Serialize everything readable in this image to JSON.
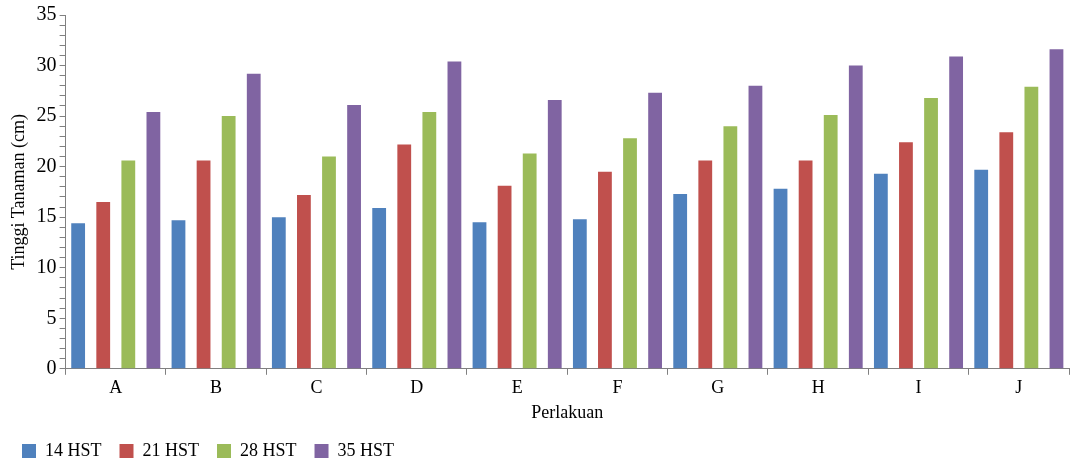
{
  "chart_data": {
    "type": "bar",
    "xlabel": "Perlakuan",
    "ylabel": "Tinggi Tanaman (cm)",
    "categories": [
      "A",
      "B",
      "C",
      "D",
      "E",
      "F",
      "G",
      "H",
      "I",
      "J"
    ],
    "series": [
      {
        "name": "14 HST",
        "color": "#4f81bd",
        "values": [
          14.4,
          14.7,
          15.0,
          15.9,
          14.5,
          14.8,
          17.3,
          17.8,
          19.3,
          19.7
        ]
      },
      {
        "name": "21 HST",
        "color": "#c0504d",
        "values": [
          16.5,
          20.6,
          17.2,
          22.2,
          18.1,
          19.5,
          20.6,
          20.6,
          22.4,
          23.4
        ]
      },
      {
        "name": "28 HST",
        "color": "#9bbb59",
        "values": [
          20.6,
          25.0,
          21.0,
          25.4,
          21.3,
          22.8,
          24.0,
          25.1,
          26.8,
          27.9
        ]
      },
      {
        "name": "35 HST",
        "color": "#8064a2",
        "values": [
          25.4,
          29.2,
          26.1,
          30.4,
          26.6,
          27.3,
          28.0,
          30.0,
          30.9,
          31.6
        ]
      }
    ],
    "ylim": [
      0,
      35
    ],
    "yticks": [
      0,
      {
        "value": 1,
        "label": null
      },
      {
        "value": 2,
        "label": null
      },
      {
        "value": 3,
        "label": null
      },
      {
        "value": 4,
        "label": null
      },
      5,
      {
        "value": 6,
        "label": null
      },
      {
        "value": 7,
        "label": null
      },
      {
        "value": 8,
        "label": null
      },
      {
        "value": 9,
        "label": null
      },
      10,
      {
        "value": 11,
        "label": null
      },
      {
        "value": 12,
        "label": null
      },
      {
        "value": 13,
        "label": null
      },
      {
        "value": 14,
        "label": null
      },
      15,
      {
        "value": 16,
        "label": null
      },
      {
        "value": 17,
        "label": null
      },
      {
        "value": 18,
        "label": null
      },
      {
        "value": 19,
        "label": null
      },
      20,
      {
        "value": 21,
        "label": null
      },
      {
        "value": 22,
        "label": null
      },
      {
        "value": 23,
        "label": null
      },
      {
        "value": 24,
        "label": null
      },
      25,
      {
        "value": 26,
        "label": null
      },
      {
        "value": 27,
        "label": null
      },
      {
        "value": 28,
        "label": null
      },
      {
        "value": 29,
        "label": null
      },
      30,
      {
        "value": 31,
        "label": null
      },
      {
        "value": 32,
        "label": null
      },
      {
        "value": 33,
        "label": null
      },
      {
        "value": 34,
        "label": null
      },
      35
    ],
    "grid": false,
    "legend": "bottom left"
  }
}
